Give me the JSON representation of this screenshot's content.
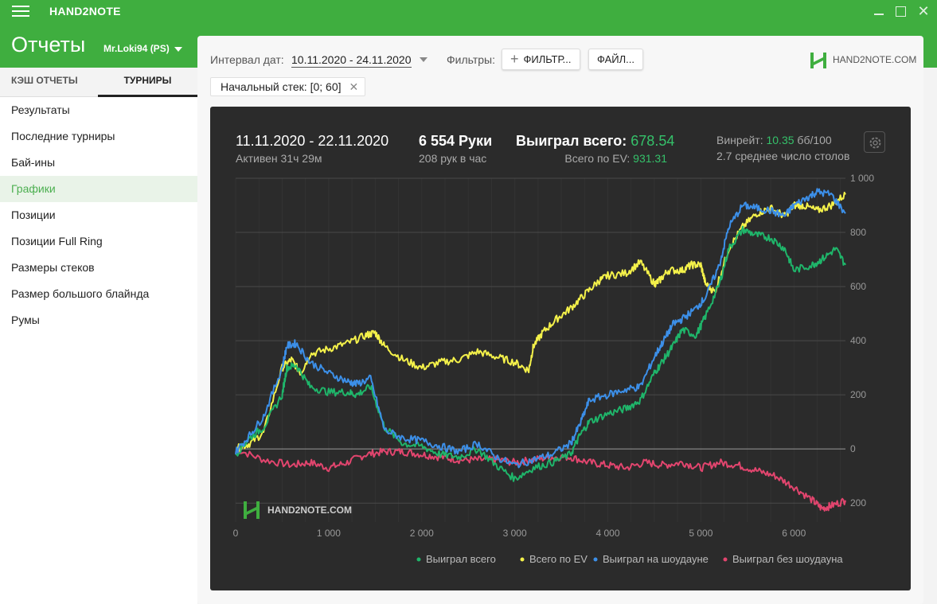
{
  "app": {
    "title": "HAND2NOTE",
    "close_glyph": "✕"
  },
  "header": {
    "title": "Отчеты",
    "account": "Mr.Loki94 (PS)"
  },
  "sidebar": {
    "tabs": [
      {
        "label": "КЭШ ОТЧЕТЫ",
        "active": false
      },
      {
        "label": "ТУРНИРЫ",
        "active": true
      }
    ],
    "items": [
      {
        "label": "Результаты"
      },
      {
        "label": "Последние турниры"
      },
      {
        "label": "Бай-ины"
      },
      {
        "label": "Графики",
        "active": true
      },
      {
        "label": "Позиции"
      },
      {
        "label": "Позиции Full Ring"
      },
      {
        "label": "Размеры стеков"
      },
      {
        "label": "Размер большого блайнда"
      },
      {
        "label": "Румы"
      }
    ]
  },
  "toolbar": {
    "date_label": "Интервал дат:",
    "date_value": "10.11.2020 - 24.11.2020",
    "filters_label": "Фильтры:",
    "filter_button": "ФИЛЬТР...",
    "file_button": "ФАЙЛ...",
    "brand": "HAND2NOTE.COM",
    "chip_text": "Начальный стек: [0; 60]",
    "chip_close": "✕"
  },
  "summary": {
    "period": "11.11.2020 - 22.11.2020",
    "active": "Активен 31ч 29м",
    "hands": "6 554 Руки",
    "hands_per_hour": "208 рук в час",
    "won_label": "Выиграл всего:",
    "won_value": "678.54",
    "ev_label": "Всего по EV:",
    "ev_value": "931.31",
    "winrate_label": "Винрейт:",
    "winrate_value": "10.35",
    "winrate_unit": "бб/100",
    "avg_tables": "2.7 среднее число столов"
  },
  "colors": {
    "green": "#3fae3f",
    "won": "#1fb56a",
    "ev": "#f4f14a",
    "showdown": "#3c8fe8",
    "no_showdown": "#e2456e"
  },
  "chart_data": {
    "type": "line",
    "watermark": "HAND2NOTE.COM",
    "xlim": [
      0,
      6554
    ],
    "ylim": [
      -270,
      1000
    ],
    "x_ticks": [
      0,
      1000,
      2000,
      3000,
      4000,
      5000,
      6000
    ],
    "x_tick_labels": [
      "0",
      "1 000",
      "2 000",
      "3 000",
      "4 000",
      "5 000",
      "6 000"
    ],
    "y_ticks": [
      1000,
      800,
      600,
      400,
      200,
      0,
      -200
    ],
    "y_tick_labels": [
      "1 000",
      "800",
      "600",
      "400",
      "200",
      "0",
      "200"
    ],
    "legend_position": "bottom",
    "series": [
      {
        "name": "Выиграл всего",
        "x": [
          0,
          150,
          300,
          500,
          550,
          650,
          800,
          1000,
          1200,
          1300,
          1450,
          1600,
          1800,
          2000,
          2200,
          2400,
          2600,
          2800,
          3000,
          3200,
          3400,
          3600,
          3700,
          3800,
          4000,
          4200,
          4350,
          4500,
          4600,
          4700,
          4800,
          4950,
          5050,
          5200,
          5300,
          5450,
          5600,
          5750,
          5900,
          6000,
          6200,
          6300,
          6450,
          6554
        ],
        "y": [
          -20,
          40,
          80,
          200,
          300,
          310,
          230,
          210,
          210,
          200,
          230,
          80,
          20,
          10,
          -20,
          -30,
          0,
          -60,
          -110,
          -70,
          -50,
          -20,
          50,
          100,
          130,
          150,
          180,
          280,
          330,
          380,
          440,
          420,
          490,
          610,
          740,
          810,
          790,
          780,
          740,
          660,
          680,
          700,
          740,
          680
        ]
      },
      {
        "name": "Всего по EV",
        "x": [
          0,
          150,
          300,
          500,
          600,
          700,
          800,
          1000,
          1200,
          1400,
          1500,
          1600,
          1800,
          2000,
          2200,
          2400,
          2600,
          2800,
          3000,
          3150,
          3200,
          3300,
          3450,
          3600,
          3750,
          3900,
          4000,
          4200,
          4350,
          4500,
          4550,
          4650,
          4800,
          4900,
          5000,
          5050,
          5150,
          5300,
          5450,
          5600,
          5750,
          5900,
          6000,
          6100,
          6250,
          6400,
          6554
        ],
        "y": [
          0,
          20,
          60,
          300,
          330,
          280,
          350,
          370,
          390,
          420,
          430,
          380,
          330,
          300,
          320,
          330,
          360,
          340,
          320,
          290,
          380,
          430,
          480,
          520,
          570,
          620,
          640,
          650,
          690,
          610,
          620,
          660,
          660,
          680,
          680,
          610,
          580,
          740,
          820,
          870,
          890,
          860,
          900,
          900,
          880,
          900,
          940
        ]
      },
      {
        "name": "Выиграл на шоудауне",
        "x": [
          0,
          150,
          300,
          500,
          550,
          650,
          800,
          1000,
          1200,
          1300,
          1450,
          1600,
          1800,
          2000,
          2200,
          2400,
          2600,
          2800,
          3000,
          3200,
          3400,
          3600,
          3700,
          3800,
          4000,
          4200,
          4350,
          4500,
          4600,
          4700,
          4800,
          4950,
          5050,
          5200,
          5300,
          5450,
          5600,
          5750,
          5900,
          6000,
          6150,
          6250,
          6400,
          6554
        ],
        "y": [
          -10,
          50,
          120,
          300,
          380,
          390,
          320,
          280,
          250,
          240,
          260,
          70,
          40,
          30,
          10,
          -10,
          20,
          -30,
          -60,
          -40,
          -20,
          20,
          90,
          180,
          200,
          220,
          230,
          340,
          400,
          460,
          480,
          520,
          560,
          680,
          820,
          900,
          890,
          880,
          860,
          900,
          930,
          950,
          940,
          870
        ]
      },
      {
        "name": "Выиграл без шоудауна",
        "x": [
          0,
          300,
          600,
          800,
          1000,
          1200,
          1400,
          1600,
          1800,
          2000,
          2200,
          2400,
          2600,
          2800,
          3000,
          3200,
          3400,
          3600,
          3800,
          4000,
          4200,
          4400,
          4600,
          4800,
          5000,
          5200,
          5400,
          5600,
          5800,
          6000,
          6200,
          6300,
          6400,
          6554
        ],
        "y": [
          0,
          -40,
          -60,
          -50,
          -70,
          -50,
          -20,
          -10,
          -10,
          -20,
          -30,
          -40,
          -40,
          -40,
          -50,
          -40,
          -30,
          -30,
          -50,
          -60,
          -70,
          -50,
          -60,
          -50,
          -70,
          -50,
          -60,
          -80,
          -100,
          -140,
          -190,
          -220,
          -210,
          -190
        ]
      }
    ]
  }
}
